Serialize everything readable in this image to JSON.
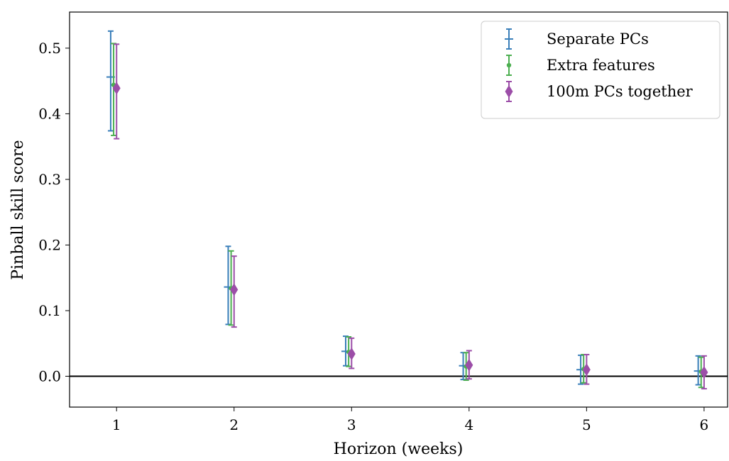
{
  "chart_data": {
    "type": "scatter",
    "title": "",
    "xlabel": "Horizon (weeks)",
    "ylabel": "Pinball skill score",
    "xlim": [
      0.6,
      6.2
    ],
    "ylim": [
      -0.047,
      0.555
    ],
    "x_ticks": [
      1,
      2,
      3,
      4,
      5,
      6
    ],
    "x_tick_labels": [
      "1",
      "2",
      "3",
      "4",
      "5",
      "6"
    ],
    "y_ticks": [
      0.0,
      0.1,
      0.2,
      0.3,
      0.4,
      0.5
    ],
    "y_tick_labels": [
      "0.0",
      "0.1",
      "0.2",
      "0.3",
      "0.4",
      "0.5"
    ],
    "grid": false,
    "legend_position": "top-right",
    "reference_line_y": 0.0,
    "x_offsets_by_series": [
      -0.05,
      -0.025,
      0
    ],
    "series": [
      {
        "name": "Separate PCs",
        "color": "#3a7fba",
        "marker": "hline",
        "x": [
          1,
          2,
          3,
          4,
          5,
          6
        ],
        "y": [
          0.456,
          0.136,
          0.038,
          0.016,
          0.01,
          0.008
        ],
        "err_low": [
          0.374,
          0.079,
          0.016,
          -0.005,
          -0.012,
          -0.013
        ],
        "err_high": [
          0.526,
          0.198,
          0.061,
          0.036,
          0.032,
          0.031
        ]
      },
      {
        "name": "Extra features",
        "color": "#4caf50",
        "marker": "dot",
        "x": [
          1,
          2,
          3,
          4,
          5,
          6
        ],
        "y": [
          0.444,
          0.134,
          0.037,
          0.015,
          0.011,
          0.007
        ],
        "err_low": [
          0.367,
          0.078,
          0.015,
          -0.006,
          -0.01,
          -0.017
        ],
        "err_high": [
          0.507,
          0.191,
          0.06,
          0.036,
          0.033,
          0.029
        ]
      },
      {
        "name": "100m PCs together",
        "color": "#9c4ea8",
        "marker": "diamond",
        "x": [
          1,
          2,
          3,
          4,
          5,
          6
        ],
        "y": [
          0.439,
          0.132,
          0.034,
          0.017,
          0.01,
          0.006
        ],
        "err_low": [
          0.362,
          0.075,
          0.012,
          -0.004,
          -0.012,
          -0.019
        ],
        "err_high": [
          0.506,
          0.183,
          0.058,
          0.039,
          0.033,
          0.031
        ]
      }
    ]
  }
}
